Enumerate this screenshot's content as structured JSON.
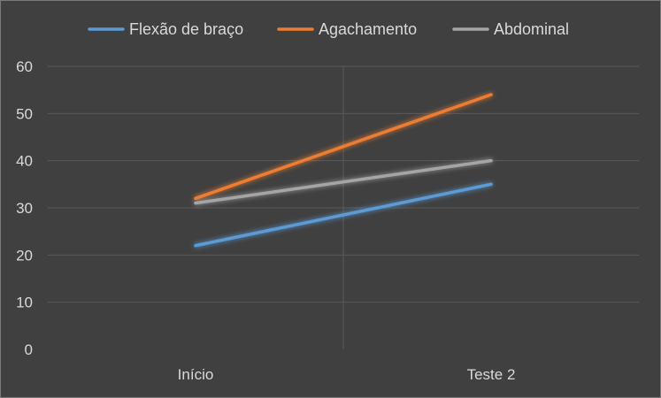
{
  "chart_data": {
    "type": "line",
    "categories": [
      "Início",
      "Teste 2"
    ],
    "series": [
      {
        "name": "Flexão de braço",
        "values": [
          22,
          35
        ],
        "color": "#5b9bd5"
      },
      {
        "name": "Agachamento",
        "values": [
          32,
          54
        ],
        "color": "#ed7d31"
      },
      {
        "name": "Abdominal",
        "values": [
          31,
          40
        ],
        "color": "#a5a5a5"
      }
    ],
    "yticks": [
      0,
      10,
      20,
      30,
      40,
      50,
      60
    ],
    "ylim": [
      0,
      60
    ],
    "grid": true,
    "legend": "top"
  }
}
